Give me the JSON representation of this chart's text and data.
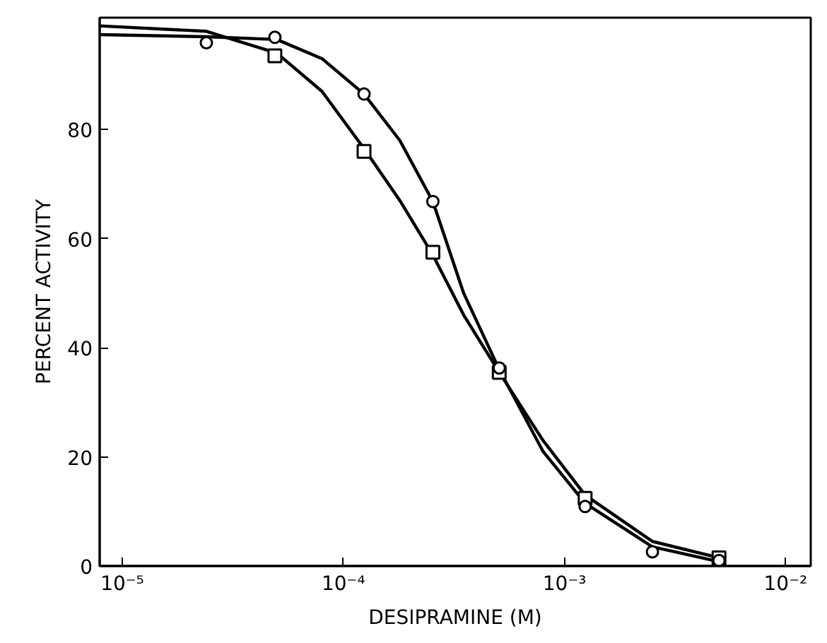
{
  "chart_data": {
    "type": "scatter",
    "xlabel": "DESIPRAMINE (M)",
    "ylabel": "PERCENT ACTIVITY",
    "log": "x",
    "xlim": [
      7.9e-06,
      0.013
    ],
    "ylim": [
      0,
      100.5
    ],
    "xticks": [
      {
        "value": 1e-05,
        "label": "10⁻⁵"
      },
      {
        "value": 0.0001,
        "label": "10⁻⁴"
      },
      {
        "value": 0.001,
        "label": "10⁻³"
      },
      {
        "value": 0.01,
        "label": "10⁻²"
      }
    ],
    "yticks": [
      0,
      20,
      40,
      60,
      80
    ],
    "grid": false,
    "series": [
      {
        "marker": "square",
        "color": "#000000",
        "x": [
          4.9e-05,
          0.000124,
          0.000254,
          0.000507,
          0.00124,
          0.005
        ],
        "values": [
          93.5,
          76,
          57.5,
          35.5,
          12.4,
          1.5
        ]
      },
      {
        "marker": "circle",
        "color": "#000000",
        "x": [
          2.4e-05,
          4.9e-05,
          0.000124,
          0.000254,
          0.000507,
          0.00124,
          0.0025,
          0.005
        ],
        "values": [
          95.9,
          96.9,
          86.5,
          66.8,
          36.3,
          10.9,
          2.6,
          1.0
        ]
      },
      {
        "type": "line",
        "line_style": "solid",
        "color": "#000000",
        "x": [
          7.9e-06,
          2.4e-05,
          5e-05,
          8e-05,
          0.000124,
          0.00018,
          0.000254,
          0.00035,
          0.000507,
          0.0008,
          0.00124,
          0.0025,
          0.005
        ],
        "values": [
          97.4,
          97,
          96.5,
          93,
          86.5,
          78,
          66.8,
          50,
          36,
          21,
          11.5,
          3.5,
          0.8
        ]
      },
      {
        "type": "line",
        "line_style": "solid",
        "color": "#000000",
        "x": [
          7.9e-06,
          2.4e-05,
          5e-05,
          8e-05,
          0.000124,
          0.00018,
          0.000254,
          0.00035,
          0.000507,
          0.0008,
          0.00124,
          0.0025,
          0.005
        ],
        "values": [
          99,
          98,
          94,
          87,
          76.5,
          67,
          57,
          46,
          35.5,
          23,
          13,
          4.5,
          1.5
        ]
      }
    ]
  }
}
